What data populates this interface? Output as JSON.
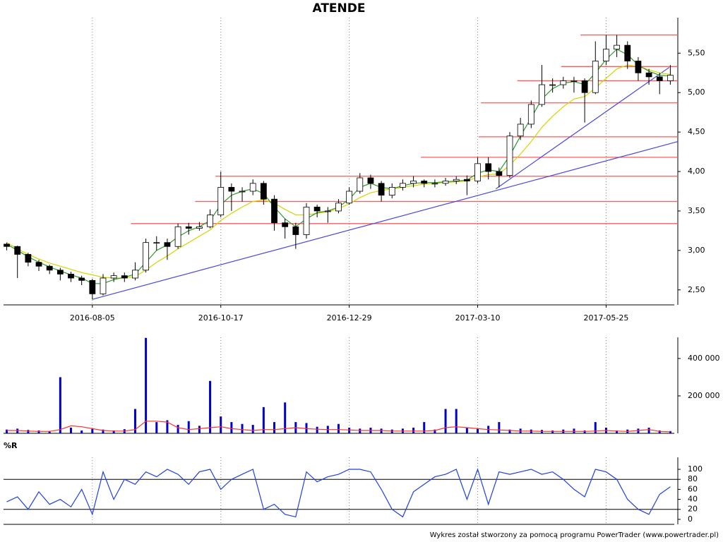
{
  "footer": "Wykres został stworzony za pomocą programu PowerTrader (www.powertrader.pl)",
  "chart_data": [
    {
      "type": "candlestick",
      "title": "ATENDE",
      "categories": [
        null,
        null,
        null,
        null,
        null,
        null,
        null,
        null,
        "2016-08-05",
        null,
        null,
        null,
        null,
        null,
        null,
        null,
        null,
        null,
        null,
        null,
        "2016-10-17",
        null,
        null,
        null,
        null,
        null,
        null,
        null,
        null,
        null,
        null,
        null,
        "2016-12-29",
        null,
        null,
        null,
        null,
        null,
        null,
        null,
        null,
        null,
        null,
        null,
        "2017-03-10",
        null,
        null,
        null,
        null,
        null,
        null,
        null,
        null,
        null,
        null,
        null,
        "2017-05-25",
        null,
        null,
        null,
        null,
        null,
        null
      ],
      "open": [
        3.08,
        3.05,
        2.95,
        2.85,
        2.8,
        2.75,
        2.7,
        2.65,
        2.62,
        2.45,
        2.65,
        2.68,
        2.65,
        2.75,
        3.1,
        3.1,
        3.05,
        3.3,
        3.28,
        3.3,
        3.45,
        3.8,
        3.75,
        3.75,
        3.85,
        3.65,
        3.35,
        3.3,
        3.2,
        3.55,
        3.5,
        3.5,
        3.6,
        3.75,
        3.92,
        3.85,
        3.7,
        3.8,
        3.85,
        3.88,
        3.85,
        3.85,
        3.88,
        3.9,
        3.88,
        4.1,
        4.0,
        3.95,
        4.45,
        4.6,
        4.85,
        5.1,
        5.1,
        5.15,
        5.15,
        5.0,
        5.4,
        5.55,
        5.6,
        5.4,
        5.25,
        5.2,
        5.15
      ],
      "high": [
        3.1,
        3.06,
        2.97,
        2.88,
        2.82,
        2.78,
        2.73,
        2.68,
        2.64,
        2.7,
        2.72,
        2.72,
        2.85,
        3.15,
        3.18,
        3.15,
        3.34,
        3.35,
        3.36,
        3.52,
        4.0,
        3.85,
        3.8,
        3.9,
        3.88,
        3.7,
        3.4,
        3.35,
        3.6,
        3.58,
        3.55,
        3.65,
        3.8,
        3.98,
        3.96,
        3.88,
        3.85,
        3.9,
        3.94,
        3.9,
        3.9,
        3.92,
        3.94,
        3.95,
        4.18,
        4.18,
        4.05,
        4.5,
        4.68,
        4.9,
        5.35,
        5.18,
        5.2,
        5.2,
        5.18,
        5.65,
        5.73,
        5.73,
        5.65,
        5.45,
        5.3,
        5.25,
        5.35
      ],
      "low": [
        3.0,
        2.65,
        2.8,
        2.74,
        2.7,
        2.62,
        2.6,
        2.56,
        2.38,
        2.43,
        2.6,
        2.6,
        2.62,
        2.72,
        3.0,
        2.88,
        3.02,
        3.2,
        3.25,
        3.28,
        3.42,
        3.5,
        3.62,
        3.7,
        3.58,
        3.25,
        3.15,
        3.02,
        3.15,
        3.42,
        3.35,
        3.47,
        3.58,
        3.72,
        3.78,
        3.62,
        3.66,
        3.76,
        3.8,
        3.8,
        3.8,
        3.82,
        3.84,
        3.7,
        3.85,
        3.9,
        3.8,
        3.92,
        4.4,
        4.55,
        4.82,
        5.0,
        5.05,
        5.0,
        4.62,
        4.98,
        5.35,
        5.45,
        5.3,
        5.15,
        5.1,
        4.98,
        5.1
      ],
      "close": [
        3.05,
        2.95,
        2.85,
        2.8,
        2.75,
        2.7,
        2.65,
        2.62,
        2.45,
        2.65,
        2.68,
        2.65,
        2.75,
        3.1,
        3.1,
        3.05,
        3.3,
        3.28,
        3.3,
        3.45,
        3.8,
        3.75,
        3.75,
        3.85,
        3.65,
        3.35,
        3.3,
        3.2,
        3.55,
        3.5,
        3.5,
        3.6,
        3.75,
        3.92,
        3.85,
        3.7,
        3.8,
        3.85,
        3.88,
        3.85,
        3.85,
        3.88,
        3.9,
        3.88,
        4.1,
        4.0,
        3.95,
        4.45,
        4.6,
        4.85,
        5.1,
        5.1,
        5.15,
        5.15,
        5.0,
        5.4,
        5.55,
        5.6,
        5.4,
        5.25,
        5.2,
        5.15,
        5.22
      ],
      "up_color": "#ffffff",
      "down_color": "#000000",
      "averages": [
        {
          "color": "#d4d400",
          "values": [
            3.1,
            3.02,
            2.95,
            2.89,
            2.84,
            2.8,
            2.76,
            2.72,
            2.69,
            2.66,
            2.65,
            2.65,
            2.67,
            2.75,
            2.85,
            2.93,
            3.02,
            3.1,
            3.18,
            3.26,
            3.38,
            3.47,
            3.55,
            3.62,
            3.64,
            3.6,
            3.52,
            3.45,
            3.45,
            3.47,
            3.49,
            3.53,
            3.59,
            3.67,
            3.73,
            3.76,
            3.78,
            3.8,
            3.82,
            3.84,
            3.85,
            3.86,
            3.87,
            3.88,
            3.93,
            3.96,
            3.97,
            4.08,
            4.22,
            4.38,
            4.56,
            4.7,
            4.82,
            4.92,
            4.95,
            5.06,
            5.18,
            5.3,
            5.35,
            5.33,
            5.29,
            5.25,
            5.23
          ]
        },
        {
          "color": "#2a9a2a",
          "values": [
            3.08,
            3.0,
            2.92,
            2.85,
            2.79,
            2.74,
            2.69,
            2.65,
            2.58,
            2.58,
            2.63,
            2.66,
            2.7,
            2.85,
            3.0,
            3.07,
            3.17,
            3.25,
            3.3,
            3.38,
            3.58,
            3.7,
            3.75,
            3.78,
            3.72,
            3.55,
            3.4,
            3.3,
            3.4,
            3.48,
            3.5,
            3.55,
            3.65,
            3.8,
            3.85,
            3.8,
            3.78,
            3.82,
            3.85,
            3.86,
            3.86,
            3.87,
            3.88,
            3.89,
            3.98,
            4.02,
            4.0,
            4.2,
            4.45,
            4.68,
            4.92,
            5.05,
            5.12,
            5.14,
            5.1,
            5.25,
            5.42,
            5.55,
            5.48,
            5.35,
            5.27,
            5.22,
            5.21
          ]
        }
      ],
      "levels": {
        "color": "#ff5a5a",
        "lines": [
          {
            "value": 5.73,
            "start": 53.6
          },
          {
            "value": 5.33,
            "start": 51.8
          },
          {
            "value": 5.15,
            "start": 47.7
          },
          {
            "value": 4.87,
            "start": 44.3
          },
          {
            "value": 4.44,
            "start": 44.1
          },
          {
            "value": 4.18,
            "start": 38.7
          },
          {
            "value": 3.94,
            "start": 19.5
          },
          {
            "value": 3.62,
            "start": 17.6
          },
          {
            "value": 3.34,
            "start": 11.6
          }
        ]
      },
      "trendlines": {
        "color": "#4848e0",
        "lines": [
          {
            "x": [
              8,
              62.7
            ],
            "y": [
              2.38,
              4.38
            ]
          },
          {
            "x": [
              45.7,
              61.9
            ],
            "y": [
              3.78,
              5.32
            ]
          }
        ]
      },
      "xlim": [
        -0.3,
        62.7
      ],
      "ylim": [
        2.31,
        5.95
      ],
      "yticks": [
        {
          "value": 2.5,
          "label": "2,50"
        },
        {
          "value": 3,
          "label": "3,00"
        },
        {
          "value": 3.5,
          "label": "3,50"
        },
        {
          "value": 4,
          "label": "4,00"
        },
        {
          "value": 4.5,
          "label": "4,50"
        },
        {
          "value": 5,
          "label": "5,00"
        },
        {
          "value": 5.5,
          "label": "5,50"
        }
      ],
      "grid": true
    },
    {
      "type": "bar",
      "color": "#0000cc",
      "values": [
        20000,
        25000,
        18000,
        15000,
        12000,
        300000,
        30000,
        15000,
        25000,
        20000,
        15000,
        22000,
        130000,
        510000,
        60000,
        70000,
        45000,
        65000,
        40000,
        280000,
        90000,
        60000,
        50000,
        45000,
        140000,
        60000,
        165000,
        60000,
        55000,
        35000,
        40000,
        50000,
        30000,
        25000,
        30000,
        25000,
        20000,
        25000,
        30000,
        60000,
        20000,
        130000,
        130000,
        30000,
        25000,
        40000,
        60000,
        20000,
        25000,
        20000,
        18000,
        15000,
        20000,
        25000,
        15000,
        60000,
        30000,
        15000,
        20000,
        25000,
        30000,
        15000,
        12000
      ],
      "average": {
        "color": "#ff3030",
        "values": [
          15000,
          15000,
          12000,
          10000,
          10000,
          20000,
          40000,
          35000,
          25000,
          15000,
          12000,
          12000,
          20000,
          65000,
          65000,
          60000,
          30000,
          20000,
          25000,
          30000,
          35000,
          25000,
          20000,
          15000,
          20000,
          20000,
          25000,
          30000,
          25000,
          22000,
          20000,
          20000,
          18000,
          15000,
          15000,
          15000,
          12000,
          12000,
          12000,
          12000,
          15000,
          30000,
          35000,
          30000,
          25000,
          20000,
          18000,
          15000,
          12000,
          12000,
          10000,
          10000,
          10000,
          10000,
          10000,
          12000,
          15000,
          12000,
          10000,
          15000,
          20000,
          10000,
          8000
        ]
      },
      "ylim": [
        0,
        513000
      ],
      "yticks": [
        {
          "value": 200000,
          "label": "200 000"
        },
        {
          "value": 400000,
          "label": "400 000"
        }
      ]
    },
    {
      "type": "line",
      "title": "%R",
      "color": "#2040e0",
      "values": [
        35,
        45,
        20,
        55,
        30,
        40,
        25,
        60,
        10,
        95,
        40,
        80,
        70,
        95,
        85,
        100,
        90,
        70,
        95,
        100,
        60,
        80,
        90,
        100,
        20,
        30,
        10,
        5,
        95,
        75,
        85,
        90,
        100,
        100,
        95,
        60,
        20,
        5,
        55,
        70,
        85,
        90,
        100,
        40,
        100,
        30,
        95,
        90,
        95,
        100,
        90,
        95,
        80,
        60,
        45,
        100,
        95,
        80,
        40,
        20,
        10,
        50,
        65
      ],
      "reference_lines": [
        20,
        80
      ],
      "ylim": [
        -10,
        124
      ],
      "yticks": [
        0,
        20,
        40,
        60,
        80,
        100
      ]
    }
  ]
}
